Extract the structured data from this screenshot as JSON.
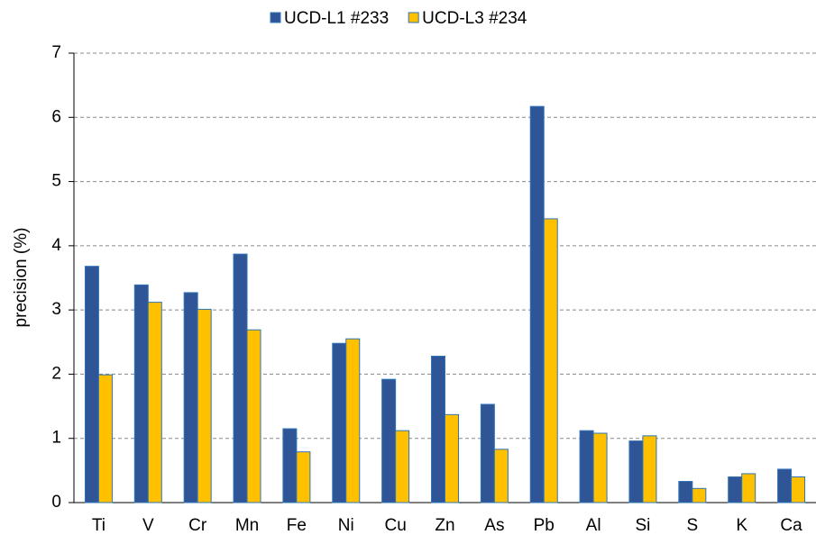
{
  "chart_data": {
    "type": "bar",
    "y_label": "precision (%)",
    "categories": [
      "Ti",
      "V",
      "Cr",
      "Mn",
      "Fe",
      "Ni",
      "Cu",
      "Zn",
      "As",
      "Pb",
      "Al",
      "Si",
      "S",
      "K",
      "Ca"
    ],
    "series": [
      {
        "name": "UCD-L1 #233",
        "color": "#2f5597",
        "values": [
          3.68,
          3.39,
          3.27,
          3.87,
          1.15,
          2.48,
          1.92,
          2.28,
          1.53,
          6.17,
          1.12,
          0.96,
          0.33,
          0.4,
          0.52
        ]
      },
      {
        "name": "UCD-L3 #234",
        "color": "#ffc000",
        "values": [
          1.99,
          3.12,
          3.01,
          2.69,
          0.79,
          2.55,
          1.12,
          1.37,
          0.83,
          4.42,
          1.08,
          1.04,
          0.22,
          0.45,
          0.4
        ]
      }
    ],
    "ylim": [
      0,
      7
    ],
    "yticks": [
      0,
      1,
      2,
      3,
      4,
      5,
      6,
      7
    ],
    "grid": true,
    "legend": "top"
  }
}
